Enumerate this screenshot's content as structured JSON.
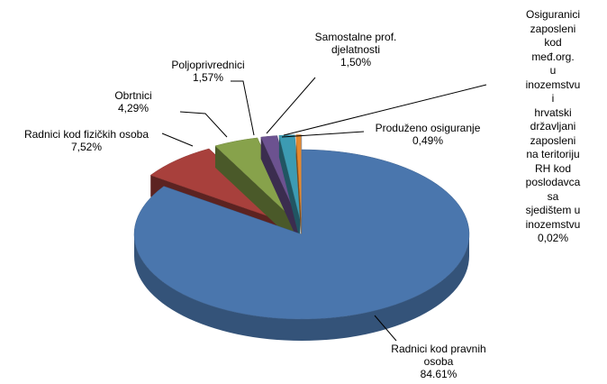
{
  "chart_data": {
    "type": "pie",
    "categories": [
      "Radnici kod pravnih\nosoba",
      "Radnici kod fizičkih osoba",
      "Obrtnici",
      "Poljoprivrednici",
      "Samostalne prof.\ndjelatnosti",
      "Produženo osiguranje",
      "Osiguranici\nzaposleni kod\nmeđ.org.\nu inozemstvu i\nhrvatski državljani\nzaposleni\nna teritoriju RH kod\nposlodavca sa\nsjedištem u\ninozemstvu"
    ],
    "values": [
      84.61,
      7.52,
      4.29,
      1.57,
      1.5,
      0.49,
      0.02
    ],
    "value_labels": [
      "84.61%",
      "7,52%",
      "4,29%",
      "1,57%",
      "1,50%",
      "0,49%",
      "0,02%"
    ],
    "colors": [
      "#4a76ad",
      "#a8403c",
      "#87a24b",
      "#6c5290",
      "#3c9bb3",
      "#e5892f",
      "#9fbbe0"
    ]
  }
}
